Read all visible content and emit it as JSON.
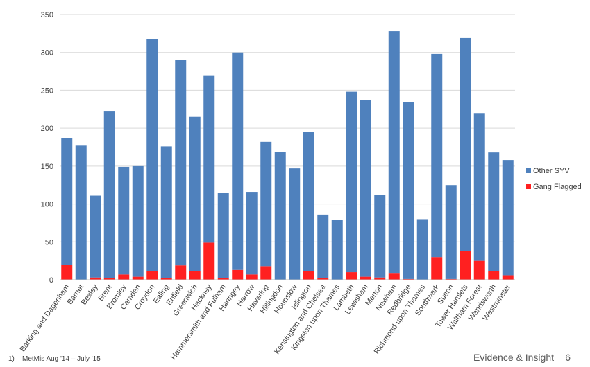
{
  "chart_data": {
    "type": "bar",
    "stacked": true,
    "categories": [
      "Barking and Dagenham",
      "Barnet",
      "Bexley",
      "Brent",
      "Bromley",
      "Camden",
      "Croydon",
      "Ealing",
      "Enfield",
      "Greenwich",
      "Hackney",
      "Hammersmith and Fulham",
      "Haringey",
      "Harrow",
      "Havering",
      "Hillingdon",
      "Hounslow",
      "Islington",
      "Kensington and Chelsea",
      "Kingston upon Thames",
      "Lambeth",
      "Lewisham",
      "Merton",
      "Newham",
      "Redbridge",
      "Richmond upon Thames",
      "Southwark",
      "Sutton",
      "Tower Hamlets",
      "Waltham Forest",
      "Wandsworth",
      "Westminster"
    ],
    "series": [
      {
        "name": "Gang Flagged",
        "color": "#ff2020",
        "values": [
          20,
          0,
          3,
          2,
          7,
          4,
          11,
          2,
          19,
          11,
          49,
          2,
          13,
          7,
          18,
          0,
          0,
          11,
          2,
          0,
          10,
          4,
          3,
          9,
          1,
          0,
          30,
          1,
          38,
          25,
          11,
          6
        ]
      },
      {
        "name": "Other SYV",
        "color": "#4f81bd",
        "values": [
          167,
          177,
          108,
          220,
          142,
          146,
          307,
          174,
          271,
          204,
          220,
          113,
          287,
          109,
          164,
          169,
          147,
          184,
          84,
          79,
          238,
          233,
          109,
          319,
          233,
          80,
          268,
          124,
          281,
          195,
          157,
          152
        ]
      }
    ],
    "ylim": [
      0,
      350
    ],
    "yticks": [
      0,
      50,
      100,
      150,
      200,
      250,
      300,
      350
    ],
    "grid": true,
    "legend": "right",
    "xlabel": "",
    "ylabel": ""
  },
  "legend": {
    "other": "Other SYV",
    "gang": "Gang Flagged"
  },
  "footer": {
    "footnote": "1)    MetMis Aug '14 – July '15",
    "brand": "Evidence & Insight",
    "page": "6"
  }
}
